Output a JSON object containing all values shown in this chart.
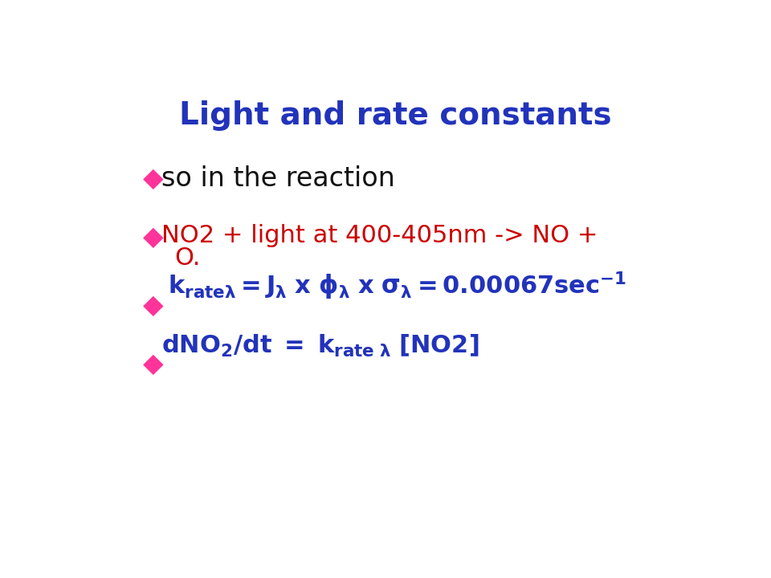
{
  "title": "Light and rate constants",
  "title_color": "#2233BB",
  "title_fontsize": 28,
  "background_color": "#FFFFFF",
  "diamond_color": "#FF3399",
  "bullet1_text": "so in the reaction",
  "bullet1_color": "#111111",
  "bullet1_fontsize": 24,
  "bullet2_color": "#CC0000",
  "bullet2_fontsize": 22,
  "bullet3_color": "#2233BB",
  "bullet3_fontsize": 22,
  "bullet4_color": "#2233BB",
  "bullet4_fontsize": 22,
  "figsize": [
    9.6,
    7.2
  ],
  "dpi": 100
}
